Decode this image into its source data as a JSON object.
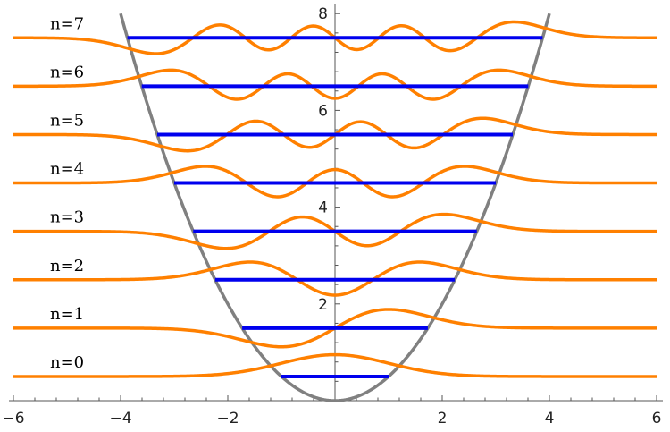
{
  "chart_data": {
    "type": "line",
    "title": "",
    "xlabel": "",
    "ylabel": "",
    "xlim": [
      -6,
      6
    ],
    "ylim": [
      0,
      8
    ],
    "x_ticks": [
      {
        "value": -6,
        "label": "−6"
      },
      {
        "value": -4,
        "label": "−4"
      },
      {
        "value": -2,
        "label": "−2"
      },
      {
        "value": 2,
        "label": "2"
      },
      {
        "value": 4,
        "label": "4"
      },
      {
        "value": 6,
        "label": "6"
      }
    ],
    "y_ticks": [
      {
        "value": 2,
        "label": "2"
      },
      {
        "value": 4,
        "label": "4"
      },
      {
        "value": 6,
        "label": "6"
      },
      {
        "value": 8,
        "label": "8"
      }
    ],
    "potential": {
      "formula": "x^2/2",
      "color": "#808080"
    },
    "levels": [
      {
        "n": 0,
        "label": "n=0",
        "energy": 0.5
      },
      {
        "n": 1,
        "label": "n=1",
        "energy": 1.5
      },
      {
        "n": 2,
        "label": "n=2",
        "energy": 2.5
      },
      {
        "n": 3,
        "label": "n=3",
        "energy": 3.5
      },
      {
        "n": 4,
        "label": "n=4",
        "energy": 4.5
      },
      {
        "n": 5,
        "label": "n=5",
        "energy": 5.5
      },
      {
        "n": 6,
        "label": "n=6",
        "energy": 6.5
      },
      {
        "n": 7,
        "label": "n=7",
        "energy": 7.5
      }
    ],
    "level_color": "#0000ee",
    "wavefunction_color": "#ff8000"
  }
}
